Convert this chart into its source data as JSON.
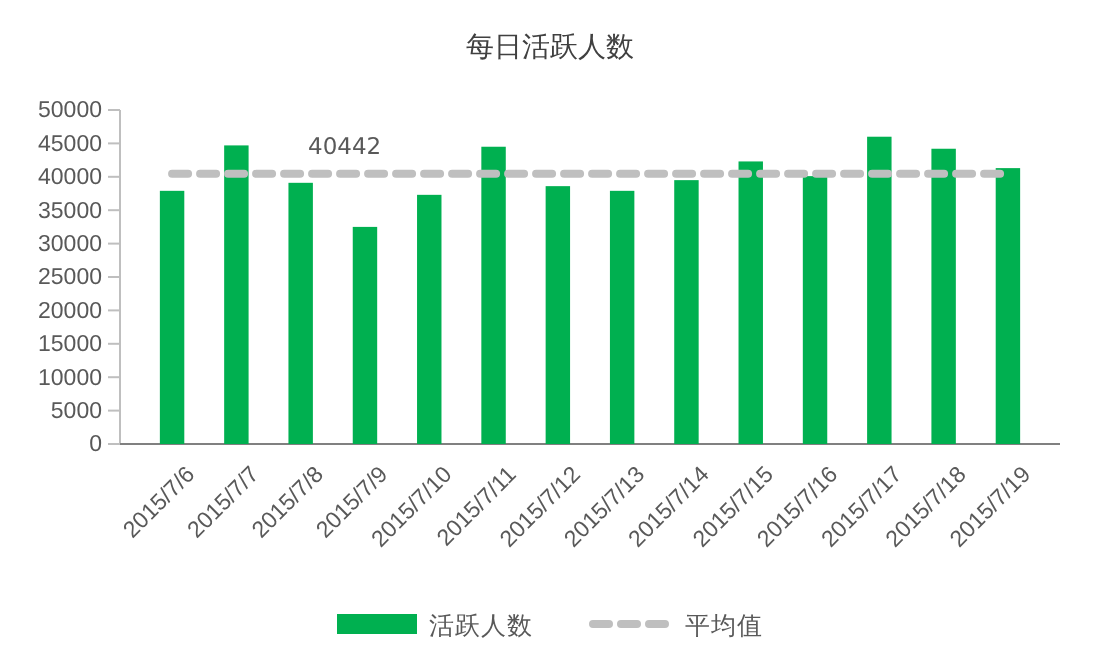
{
  "chart_data": {
    "type": "bar",
    "title": "每日活跃人数",
    "categories": [
      "2015/7/6",
      "2015/7/7",
      "2015/7/8",
      "2015/7/9",
      "2015/7/10",
      "2015/7/11",
      "2015/7/12",
      "2015/7/13",
      "2015/7/14",
      "2015/7/15",
      "2015/7/16",
      "2015/7/17",
      "2015/7/18",
      "2015/7/19"
    ],
    "series": [
      {
        "name": "活跃人数",
        "color": "#00b050",
        "values": [
          37900,
          44700,
          39100,
          32500,
          37300,
          44500,
          38600,
          37900,
          39500,
          42300,
          40100,
          46000,
          44200,
          41300
        ]
      },
      {
        "name": "平均值",
        "type": "line",
        "color": "#bfbfbf",
        "line_style": "dashed",
        "marker": "none",
        "values": [
          40442,
          40442,
          40442,
          40442,
          40442,
          40442,
          40442,
          40442,
          40442,
          40442,
          40442,
          40442,
          40442,
          40442
        ]
      }
    ],
    "annotations": [
      {
        "text": "40442",
        "x": "2015/7/8",
        "y": 40442
      }
    ],
    "ylim": [
      0,
      50000
    ],
    "yticks": [
      0,
      5000,
      10000,
      15000,
      20000,
      25000,
      30000,
      35000,
      40000,
      45000,
      50000
    ],
    "grid": false,
    "legend": "bottom"
  }
}
